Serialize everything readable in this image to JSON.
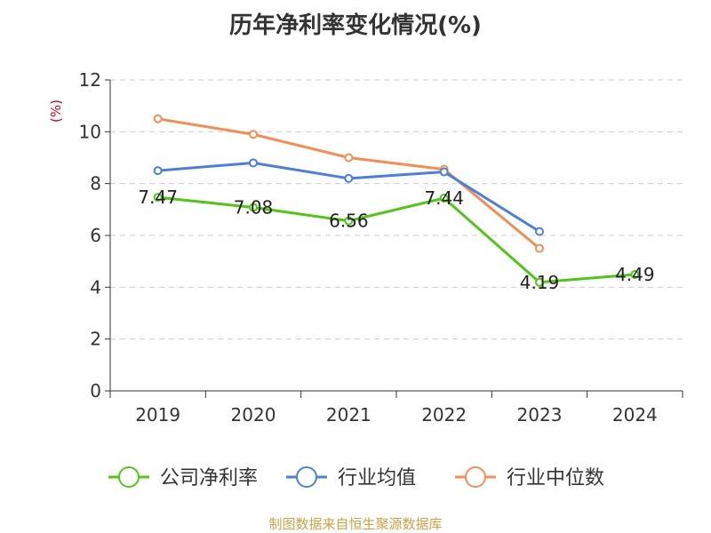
{
  "chart_data": {
    "type": "line",
    "title": "历年净利率变化情况(%)",
    "ylabel": "(%)",
    "categories": [
      "2019",
      "2020",
      "2021",
      "2022",
      "2023",
      "2024"
    ],
    "yticks": [
      "0",
      "2",
      "4",
      "6",
      "8",
      "10",
      "12"
    ],
    "ylim": [
      0,
      12
    ],
    "grid": true,
    "legend_position": "bottom",
    "series": [
      {
        "name": "公司净利率",
        "color": "#52c41a",
        "values": [
          7.47,
          7.08,
          6.56,
          7.44,
          4.19,
          4.49
        ],
        "labels": [
          "7.47",
          "7.08",
          "6.56",
          "7.44",
          "4.19",
          "4.49"
        ]
      },
      {
        "name": "行业均值",
        "color": "#4e7fd8",
        "values": [
          8.5,
          8.8,
          8.2,
          8.45,
          6.15,
          null
        ]
      },
      {
        "name": "行业中位数",
        "color": "#f28e56",
        "values": [
          10.5,
          9.9,
          9.0,
          8.55,
          5.5,
          null
        ]
      }
    ]
  },
  "source": "制图数据来自恒生聚源数据库"
}
